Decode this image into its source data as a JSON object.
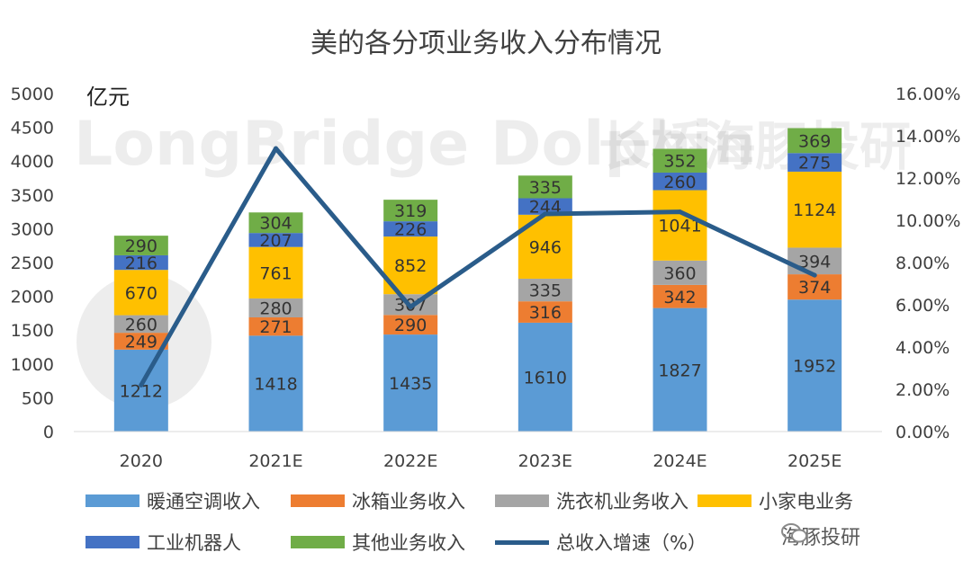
{
  "chart_data": {
    "type": "bar",
    "stacked": true,
    "title": "美的各分项业务收入分布情况",
    "unit_label": "亿元",
    "watermark": "LongBridge Dolphin",
    "watermark_cn": "长桥海豚投研",
    "categories": [
      "2020",
      "2021E",
      "2022E",
      "2023E",
      "2024E",
      "2025E"
    ],
    "ylim": [
      0,
      5000
    ],
    "yticks": [
      0,
      500,
      1000,
      1500,
      2000,
      2500,
      3000,
      3500,
      4000,
      4500,
      5000
    ],
    "y2lim": [
      0,
      16
    ],
    "y2ticks": [
      "0.00%",
      "2.00%",
      "4.00%",
      "6.00%",
      "8.00%",
      "10.00%",
      "12.00%",
      "14.00%",
      "16.00%"
    ],
    "series": [
      {
        "name": "暖通空调收入",
        "color": "#5b9bd5",
        "values": [
          1212,
          1418,
          1435,
          1610,
          1827,
          1952
        ]
      },
      {
        "name": "冰箱业务收入",
        "color": "#ed7d31",
        "values": [
          249,
          271,
          290,
          316,
          342,
          374
        ]
      },
      {
        "name": "洗衣机业务收入",
        "color": "#a5a5a5",
        "values": [
          260,
          280,
          307,
          335,
          360,
          394
        ]
      },
      {
        "name": "小家电业务",
        "color": "#ffc000",
        "values": [
          670,
          761,
          852,
          946,
          1041,
          1124
        ]
      },
      {
        "name": "工业机器人",
        "color": "#4472c4",
        "values": [
          216,
          207,
          226,
          244,
          260,
          275
        ]
      },
      {
        "name": "其他业务收入",
        "color": "#70ad47",
        "values": [
          290,
          304,
          319,
          335,
          352,
          369
        ]
      }
    ],
    "line_series": {
      "name": "总收入增速（%）",
      "color": "#2a5c8a",
      "axis": "right",
      "values": [
        2.2,
        13.4,
        5.9,
        10.3,
        10.4,
        7.4
      ]
    }
  },
  "footer": {
    "brand": "海豚投研"
  }
}
